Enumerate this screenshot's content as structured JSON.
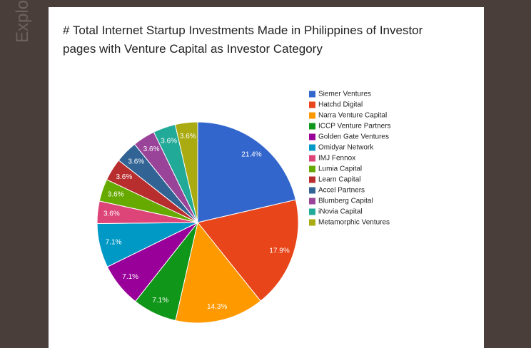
{
  "sidebar_label": "Explo",
  "chart_data": {
    "type": "pie",
    "title": "# Total Internet Startup Investments Made in Philippines of Investor pages with Venture Capital as Investor Category",
    "categories": [
      "Siemer Ventures",
      "Hatchd Digital",
      "Narra Venture Capital",
      "ICCP Venture Partners",
      "Golden Gate Ventures",
      "Omidyar Network",
      "IMJ Fennox",
      "Lumia Capital",
      "Learn Capital",
      "Accel Partners",
      "Blumberg Capital",
      "iNovia Capital",
      "Metamorphic Ventures"
    ],
    "values": [
      21.4,
      17.9,
      14.3,
      7.1,
      7.1,
      7.1,
      3.6,
      3.6,
      3.6,
      3.6,
      3.6,
      3.6,
      3.6
    ],
    "value_labels": [
      "21.4%",
      "17.9%",
      "14.3%",
      "7.1%",
      "7.1%",
      "7.1%",
      "3.6%",
      "3.6%",
      "3.6%",
      "3.6%",
      "3.6%",
      "3.6%",
      "3.6%"
    ],
    "colors": [
      "#3366cc",
      "#e8461a",
      "#ff9900",
      "#109618",
      "#990099",
      "#0099c6",
      "#dd4477",
      "#66aa00",
      "#b82e2e",
      "#316395",
      "#994499",
      "#22aa99",
      "#aaaa11"
    ],
    "legend": "right"
  }
}
